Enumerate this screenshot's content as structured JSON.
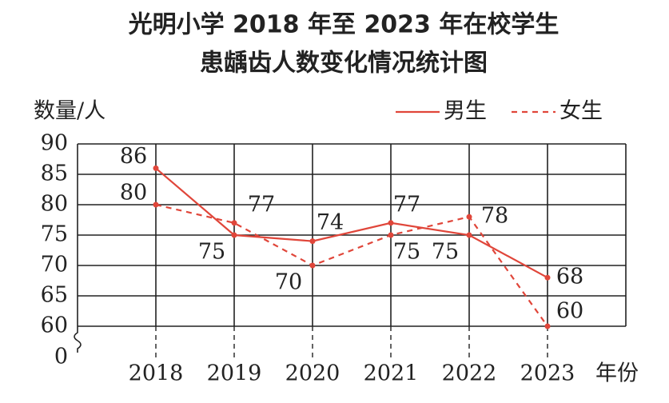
{
  "chart_data": {
    "type": "line",
    "title": [
      "光明小学 2018 年至 2023 年在校学生",
      "患龋齿人数变化情况统计图"
    ],
    "y_label": "数量/人",
    "x_label": "年份",
    "categories": [
      "2018",
      "2019",
      "2020",
      "2021",
      "2022",
      "2023"
    ],
    "series": [
      {
        "name": "男生",
        "color": "#e0463a",
        "style": "solid",
        "values": [
          86,
          75,
          74,
          77,
          75,
          68
        ]
      },
      {
        "name": "女生",
        "color": "#e0463a",
        "style": "dashed",
        "values": [
          80,
          77,
          70,
          75,
          78,
          60
        ]
      }
    ],
    "ylim": [
      0,
      90
    ],
    "yticks": [
      0,
      60,
      65,
      70,
      75,
      80,
      85,
      90
    ],
    "axis_break": [
      0,
      60
    ],
    "grid": true,
    "legend": "top-right"
  }
}
